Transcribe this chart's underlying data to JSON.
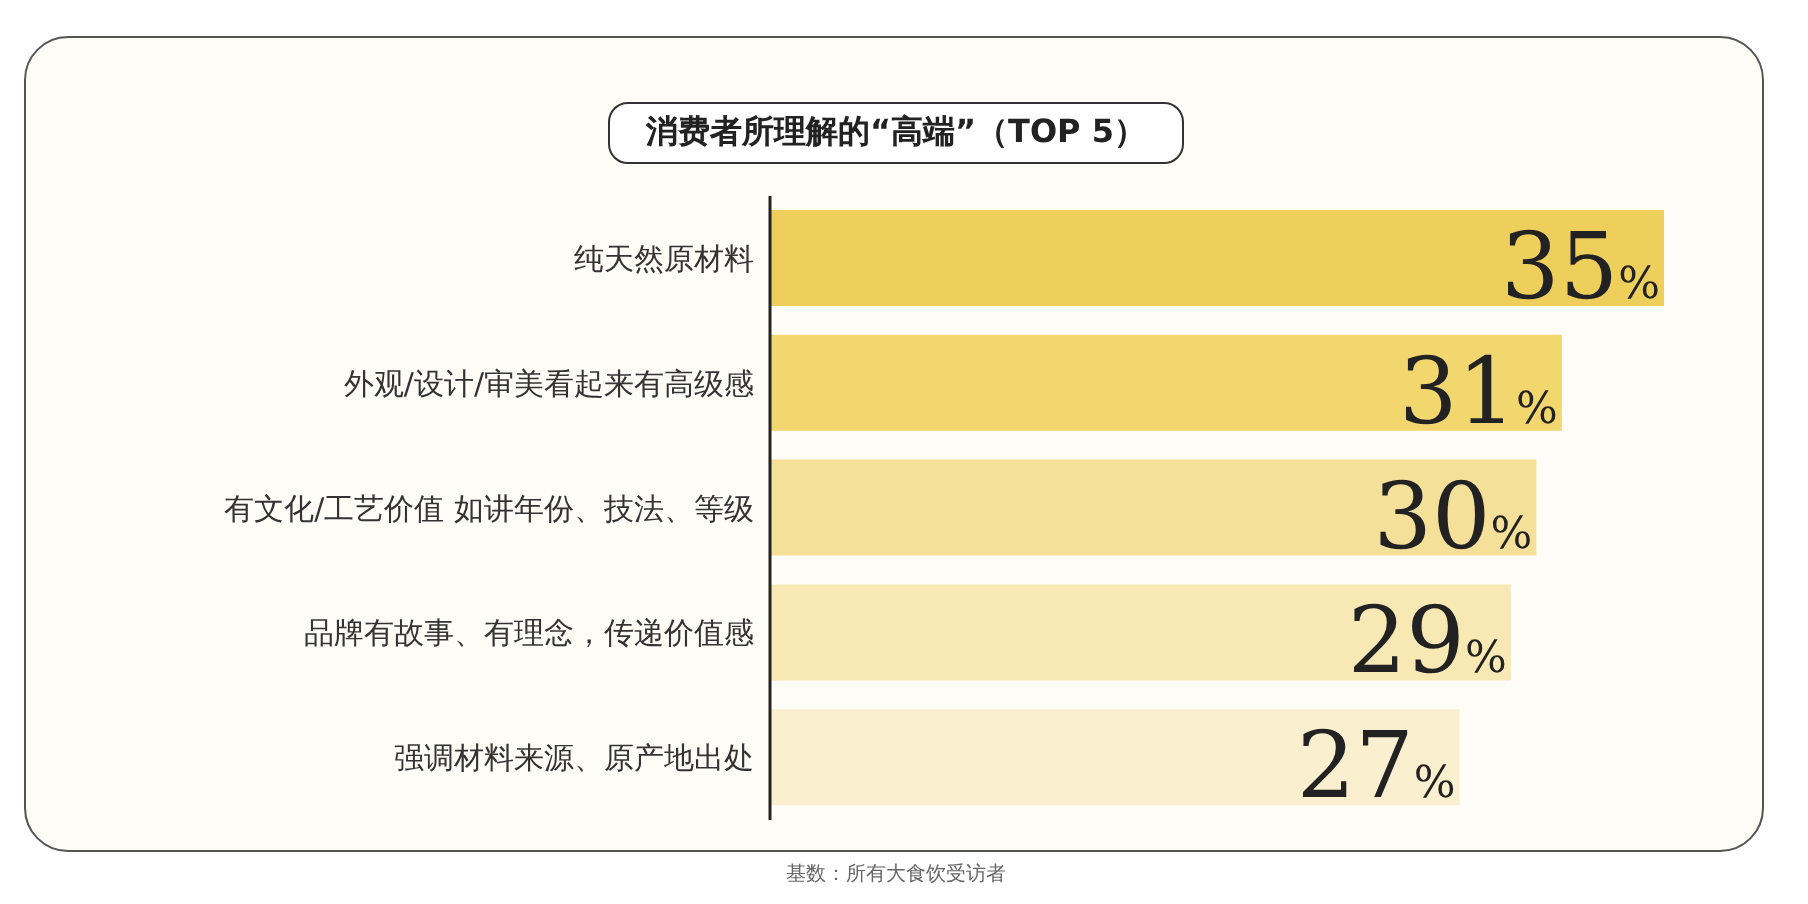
{
  "chart_data": {
    "type": "bar",
    "orientation": "horizontal",
    "title": "消费者所理解的“高端”（TOP 5）",
    "categories": [
      "纯天然原材料",
      "外观/设计/审美看起来有高级感",
      "有文化/工艺价值 如讲年份、技法、等级",
      "品牌有故事、有理念，传递价值感",
      "强调材料来源、原产地出处"
    ],
    "values": [
      35,
      31,
      30,
      29,
      27
    ],
    "colors": [
      "#efcf5c",
      "#f2d66e",
      "#f5e09a",
      "#f7e8b4",
      "#faf0d0"
    ],
    "value_labels": [
      "35%",
      "31%",
      "30%",
      "29%",
      "27%"
    ],
    "annotations": [
      "基数：所有大食饮受访者"
    ]
  }
}
